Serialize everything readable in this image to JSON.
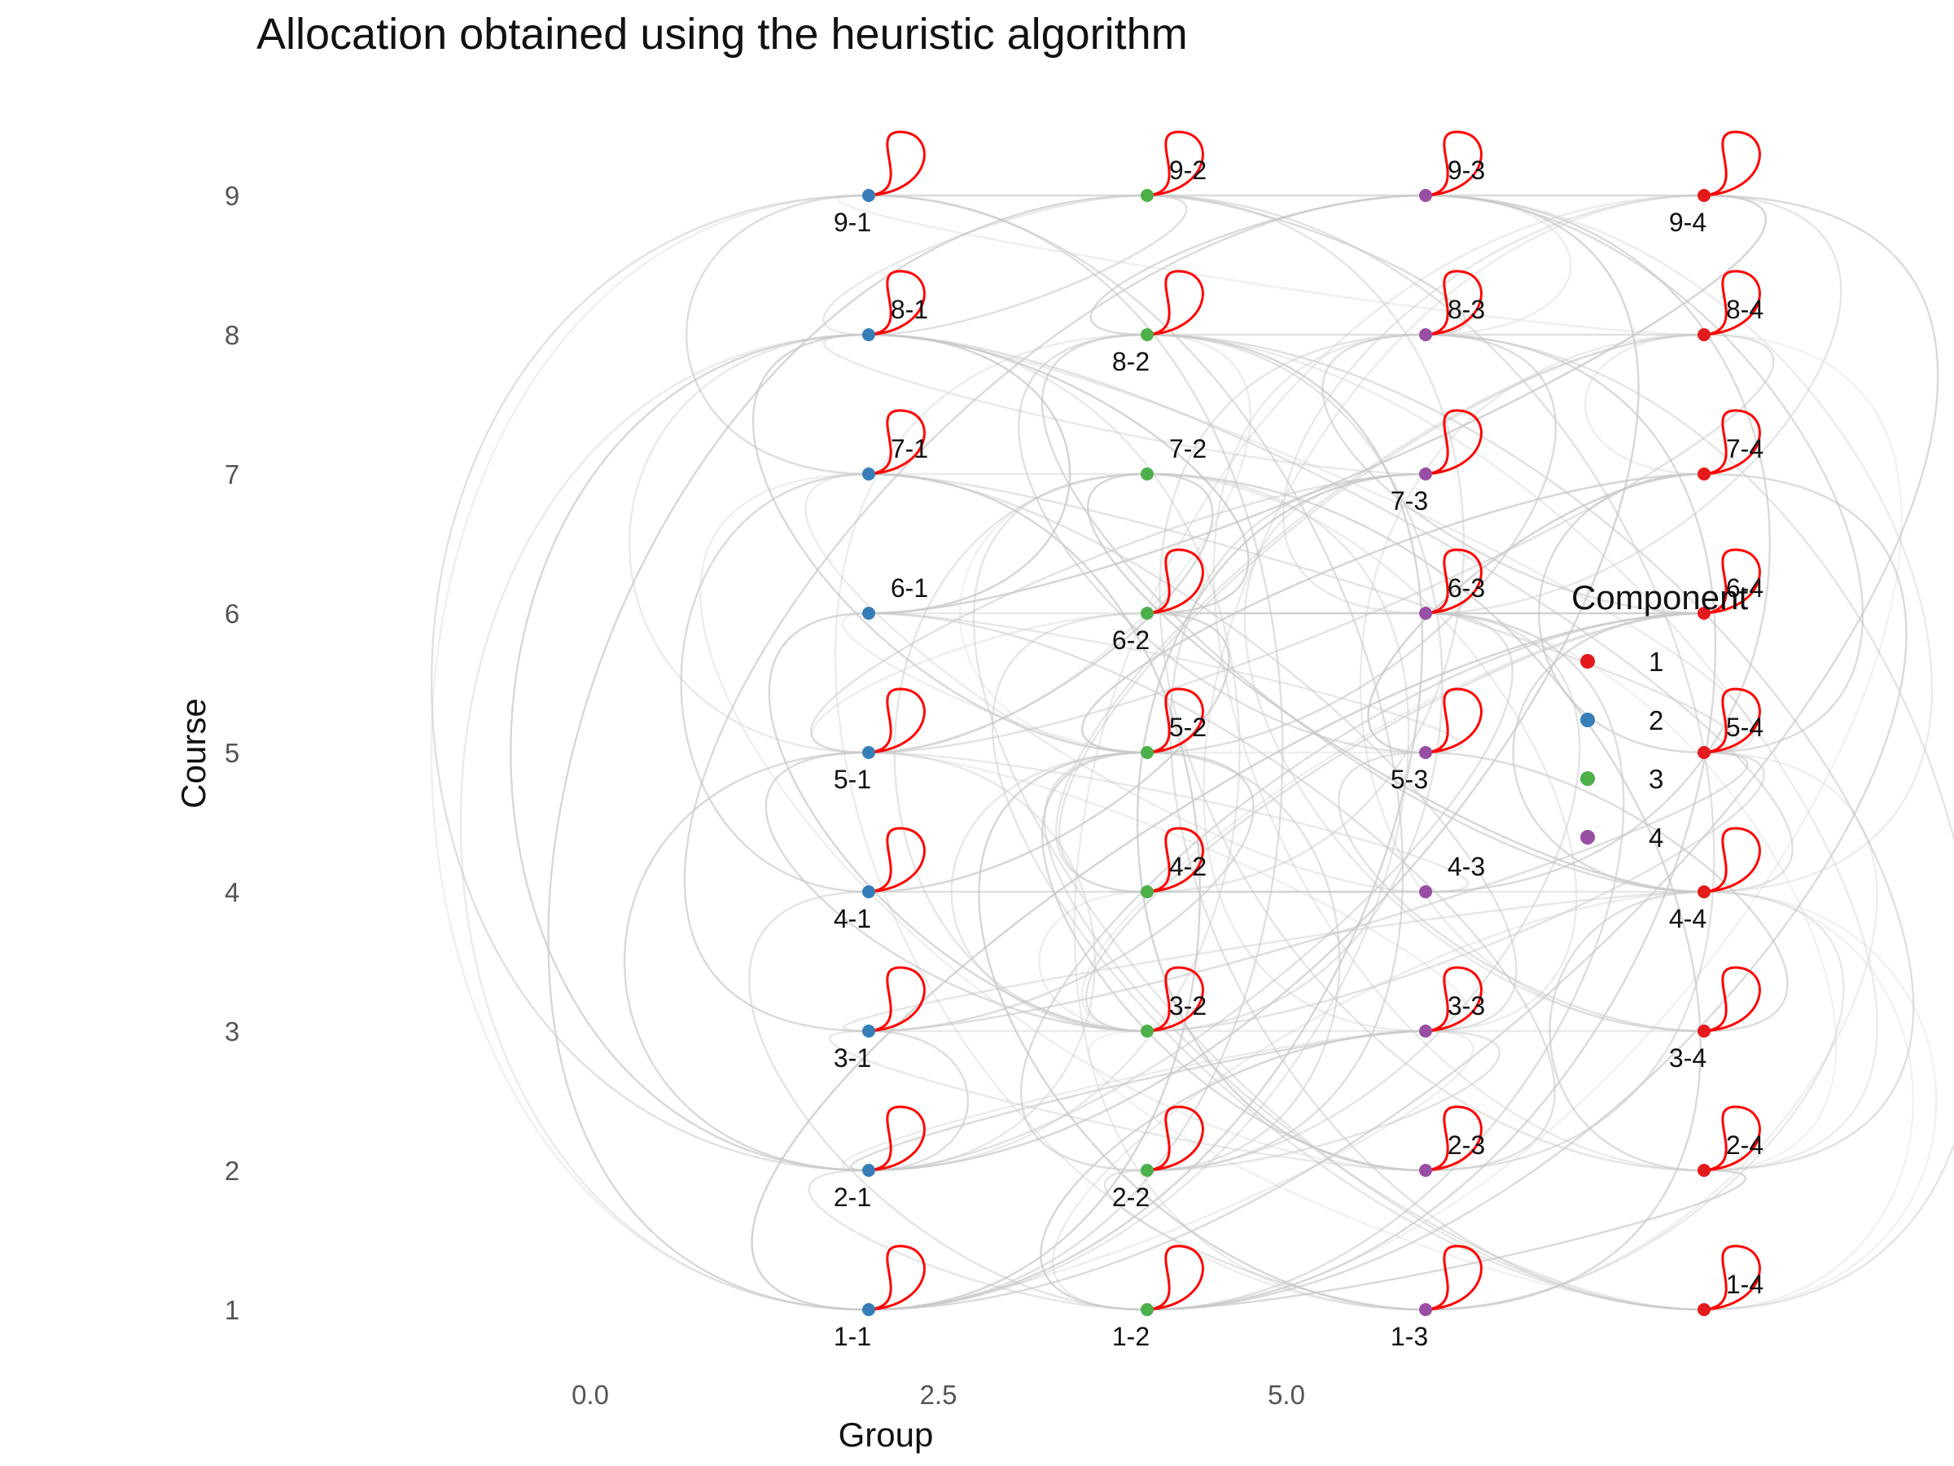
{
  "chart_data": {
    "type": "network-graph",
    "title": "Allocation obtained using the heuristic algorithm",
    "xlabel": "Group",
    "ylabel": "Course",
    "xlim": [
      -1.8,
      6.3
    ],
    "ylim": [
      0.5,
      9.5
    ],
    "x_ticks": [
      {
        "value": 0,
        "label": "0.0"
      },
      {
        "value": 2.5,
        "label": "2.5"
      },
      {
        "value": 5,
        "label": "5.0"
      }
    ],
    "y_ticks": [
      {
        "value": 1,
        "label": "1"
      },
      {
        "value": 2,
        "label": "2"
      },
      {
        "value": 3,
        "label": "3"
      },
      {
        "value": 4,
        "label": "4"
      },
      {
        "value": 5,
        "label": "5"
      },
      {
        "value": 6,
        "label": "6"
      },
      {
        "value": 7,
        "label": "7"
      },
      {
        "value": 8,
        "label": "8"
      },
      {
        "value": 9,
        "label": "9"
      }
    ],
    "grid": false,
    "legend": {
      "title": "Component",
      "placement": "right",
      "entries": [
        {
          "label": "1",
          "color": "#E41A1C"
        },
        {
          "label": "2",
          "color": "#377EB8"
        },
        {
          "label": "3",
          "color": "#4DAF4A"
        },
        {
          "label": "4",
          "color": "#984EA3"
        }
      ]
    },
    "nodes": [
      {
        "id": "1-1",
        "x": 1,
        "y": 1,
        "component": 2,
        "self_loop": true
      },
      {
        "id": "1-2",
        "x": 2,
        "y": 1,
        "component": 3,
        "self_loop": true
      },
      {
        "id": "1-3",
        "x": 3,
        "y": 1,
        "component": 4,
        "self_loop": true
      },
      {
        "id": "1-4",
        "x": 4,
        "y": 1,
        "component": 1,
        "self_loop": true
      },
      {
        "id": "2-1",
        "x": 1,
        "y": 2,
        "component": 2,
        "self_loop": true
      },
      {
        "id": "2-2",
        "x": 2,
        "y": 2,
        "component": 3,
        "self_loop": true
      },
      {
        "id": "2-3",
        "x": 3,
        "y": 2,
        "component": 4,
        "self_loop": true
      },
      {
        "id": "2-4",
        "x": 4,
        "y": 2,
        "component": 1,
        "self_loop": true
      },
      {
        "id": "3-1",
        "x": 1,
        "y": 3,
        "component": 2,
        "self_loop": true
      },
      {
        "id": "3-2",
        "x": 2,
        "y": 3,
        "component": 3,
        "self_loop": true
      },
      {
        "id": "3-3",
        "x": 3,
        "y": 3,
        "component": 4,
        "self_loop": true
      },
      {
        "id": "3-4",
        "x": 4,
        "y": 3,
        "component": 1,
        "self_loop": true
      },
      {
        "id": "4-1",
        "x": 1,
        "y": 4,
        "component": 2,
        "self_loop": true
      },
      {
        "id": "4-2",
        "x": 2,
        "y": 4,
        "component": 3,
        "self_loop": true
      },
      {
        "id": "4-3",
        "x": 3,
        "y": 4,
        "component": 4,
        "self_loop": false
      },
      {
        "id": "4-4",
        "x": 4,
        "y": 4,
        "component": 1,
        "self_loop": true
      },
      {
        "id": "5-1",
        "x": 1,
        "y": 5,
        "component": 2,
        "self_loop": true
      },
      {
        "id": "5-2",
        "x": 2,
        "y": 5,
        "component": 3,
        "self_loop": true
      },
      {
        "id": "5-3",
        "x": 3,
        "y": 5,
        "component": 4,
        "self_loop": true
      },
      {
        "id": "5-4",
        "x": 4,
        "y": 5,
        "component": 1,
        "self_loop": true
      },
      {
        "id": "6-1",
        "x": 1,
        "y": 6,
        "component": 2,
        "self_loop": false
      },
      {
        "id": "6-2",
        "x": 2,
        "y": 6,
        "component": 3,
        "self_loop": true
      },
      {
        "id": "6-3",
        "x": 3,
        "y": 6,
        "component": 4,
        "self_loop": true
      },
      {
        "id": "6-4",
        "x": 4,
        "y": 6,
        "component": 1,
        "self_loop": true
      },
      {
        "id": "7-1",
        "x": 1,
        "y": 7,
        "component": 2,
        "self_loop": true
      },
      {
        "id": "7-2",
        "x": 2,
        "y": 7,
        "component": 3,
        "self_loop": false
      },
      {
        "id": "7-3",
        "x": 3,
        "y": 7,
        "component": 4,
        "self_loop": true
      },
      {
        "id": "7-4",
        "x": 4,
        "y": 7,
        "component": 1,
        "self_loop": true
      },
      {
        "id": "8-1",
        "x": 1,
        "y": 8,
        "component": 2,
        "self_loop": true
      },
      {
        "id": "8-2",
        "x": 2,
        "y": 8,
        "component": 3,
        "self_loop": true
      },
      {
        "id": "8-3",
        "x": 3,
        "y": 8,
        "component": 4,
        "self_loop": true
      },
      {
        "id": "8-4",
        "x": 4,
        "y": 8,
        "component": 1,
        "self_loop": true
      },
      {
        "id": "9-1",
        "x": 1,
        "y": 9,
        "component": 2,
        "self_loop": true
      },
      {
        "id": "9-2",
        "x": 2,
        "y": 9,
        "component": 3,
        "self_loop": true
      },
      {
        "id": "9-3",
        "x": 3,
        "y": 9,
        "component": 4,
        "self_loop": true
      },
      {
        "id": "9-4",
        "x": 4,
        "y": 9,
        "component": 1,
        "self_loop": true
      }
    ],
    "self_loop_color": "#FF0000",
    "edge_color": "#C8C8C8"
  }
}
